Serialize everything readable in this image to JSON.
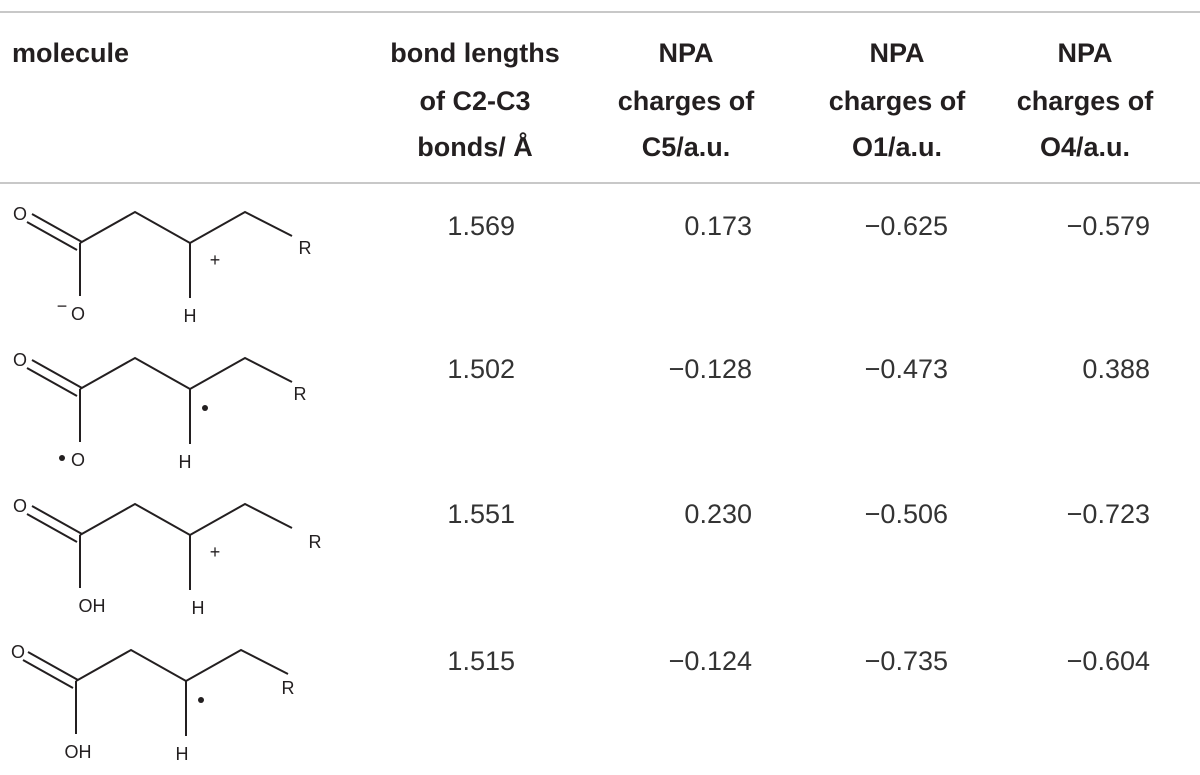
{
  "table": {
    "header": [
      [
        "molecule"
      ],
      [
        "bond lengths",
        "of C2-C3",
        "bonds/ Å"
      ],
      [
        "NPA",
        "charges of",
        "C5/a.u."
      ],
      [
        "NPA",
        "charges of",
        "O1/a.u."
      ],
      [
        "NPA",
        "charges of",
        "O4/a.u."
      ]
    ],
    "rows": [
      {
        "molecule": {
          "top": "O",
          "center": "+",
          "end": "R",
          "bottom_left_charge": "−",
          "bottom_left": "O",
          "bottom": "H"
        },
        "cells": [
          "1.569",
          "0.173",
          "−0.625",
          "−0.579"
        ]
      },
      {
        "molecule": {
          "top": "O",
          "end": "R",
          "bottom_left": "O",
          "bottom": "H"
        },
        "cells": [
          "1.502",
          "−0.128",
          "−0.473",
          "0.388"
        ]
      },
      {
        "molecule": {
          "top": "O",
          "center": "+",
          "end": "R",
          "bottom_left": "OH",
          "bottom": "H"
        },
        "cells": [
          "1.551",
          "0.230",
          "−0.506",
          "−0.723"
        ]
      },
      {
        "molecule": {
          "top": "O",
          "end": "R",
          "bottom_left": "OH",
          "bottom": "H"
        },
        "cells": [
          "1.515",
          "−0.124",
          "−0.735",
          "−0.604"
        ]
      }
    ]
  }
}
